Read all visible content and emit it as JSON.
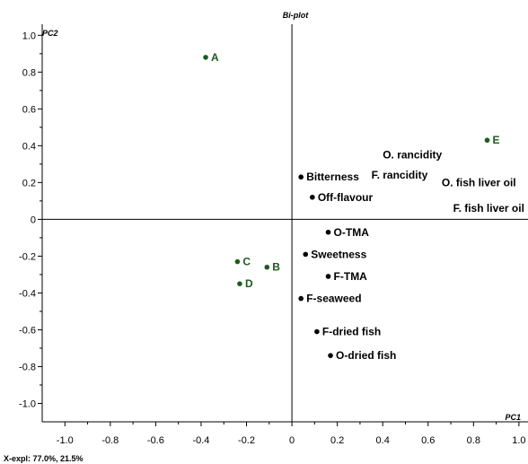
{
  "chart_data": {
    "type": "scatter",
    "title": "Bi-plot",
    "xlabel": "PC1",
    "ylabel": "PC2",
    "footer": "X-expl: 77.0%, 21.5%",
    "xlim": [
      -1.1,
      1.04
    ],
    "ylim": [
      -1.1,
      1.06
    ],
    "x_ticks": [
      -1.0,
      -0.8,
      -0.6,
      -0.4,
      -0.2,
      0,
      0.2,
      0.4,
      0.6,
      0.8,
      1.0
    ],
    "x_tick_labels": [
      "-1.0",
      "-0.8",
      "-0.6",
      "-0.4",
      "-0.2",
      "0",
      "0.2",
      "0.4",
      "0.6",
      "0.8",
      "1.0"
    ],
    "y_ticks": [
      1.0,
      0.8,
      0.6,
      0.4,
      0.2,
      0,
      -0.2,
      -0.4,
      -0.6,
      -0.8,
      -1.0
    ],
    "y_tick_labels": [
      "1.0",
      "0.8",
      "0.6",
      "0.4",
      "0.2",
      "0",
      "-0.2",
      "-0.4",
      "-0.6",
      "-0.8",
      "-1.0"
    ],
    "grid": false,
    "colors": {
      "samples": "#1f5a1f",
      "attributes": "#000000",
      "axis": "#000000"
    },
    "series": [
      {
        "name": "",
        "color": "#1f5a1f",
        "marker": "dot",
        "points": [
          {
            "label": "A",
            "x": -0.38,
            "y": 0.88
          },
          {
            "label": "B",
            "x": -0.11,
            "y": -0.26
          },
          {
            "label": "C",
            "x": -0.24,
            "y": -0.23
          },
          {
            "label": "D",
            "x": -0.23,
            "y": -0.35
          },
          {
            "label": "E",
            "x": 0.86,
            "y": 0.43
          }
        ]
      },
      {
        "name": "",
        "color": "#000000",
        "marker": "dot",
        "points": [
          {
            "label": "Bitterness",
            "x": 0.04,
            "y": 0.23
          },
          {
            "label": "Off-flavour",
            "x": 0.09,
            "y": 0.12
          },
          {
            "label": "O-TMA",
            "x": 0.16,
            "y": -0.07
          },
          {
            "label": "Sweetness",
            "x": 0.06,
            "y": -0.19
          },
          {
            "label": "F-TMA",
            "x": 0.16,
            "y": -0.31
          },
          {
            "label": "F-seaweed",
            "x": 0.04,
            "y": -0.43
          },
          {
            "label": "F-dried fish",
            "x": 0.11,
            "y": -0.61
          },
          {
            "label": "O-dried fish",
            "x": 0.17,
            "y": -0.74
          }
        ]
      },
      {
        "name": "",
        "color": "#000000",
        "marker": "none",
        "points": [
          {
            "label": "O. rancidity",
            "x": 0.4,
            "y": 0.35
          },
          {
            "label": "F. rancidity",
            "x": 0.35,
            "y": 0.24
          },
          {
            "label": "O. fish liver oil",
            "x": 0.66,
            "y": 0.2
          },
          {
            "label": "F. fish liver oil",
            "x": 0.71,
            "y": 0.06
          }
        ]
      }
    ]
  }
}
